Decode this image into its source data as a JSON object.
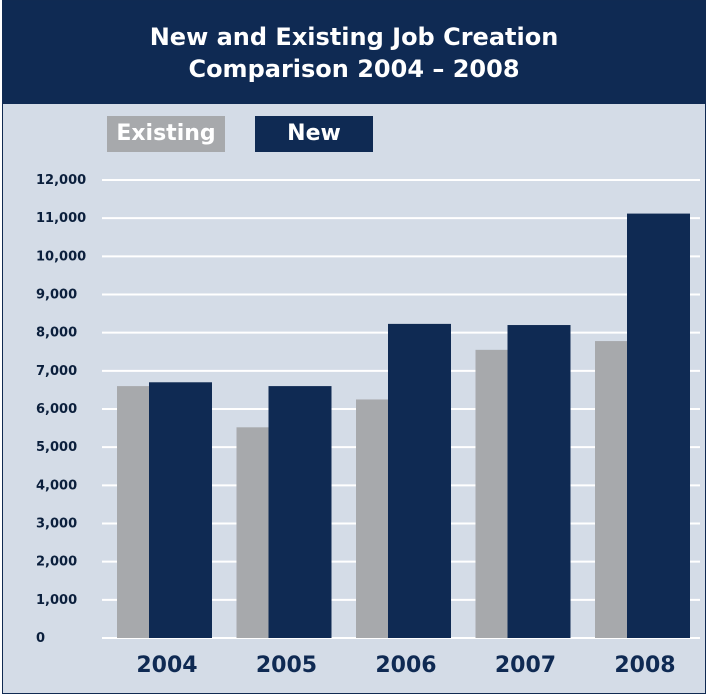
{
  "chart_data": {
    "type": "bar",
    "title_line1": "New and Existing Job Creation",
    "title_line2": "Comparison 2004 – 2008",
    "categories": [
      "2004",
      "2005",
      "2006",
      "2007",
      "2008"
    ],
    "series": [
      {
        "name": "Existing",
        "color": "#a7a9ac",
        "values": [
          6600,
          5520,
          6250,
          7550,
          7780
        ]
      },
      {
        "name": "New",
        "color": "#0f2a53",
        "values": [
          6700,
          6600,
          8230,
          8200,
          11120
        ]
      }
    ],
    "yticks": [
      0,
      1000,
      2000,
      3000,
      4000,
      5000,
      6000,
      7000,
      8000,
      9000,
      10000,
      11000,
      12000
    ],
    "ytick_labels": [
      "0",
      "1,000",
      "2,000",
      "3,000",
      "4,000",
      "5,000",
      "6,000",
      "7,000",
      "8,000",
      "9,000",
      "10,000",
      "11,000",
      "12,000"
    ],
    "ylim": [
      0,
      12000
    ],
    "grid": true,
    "legend": "top-left"
  }
}
